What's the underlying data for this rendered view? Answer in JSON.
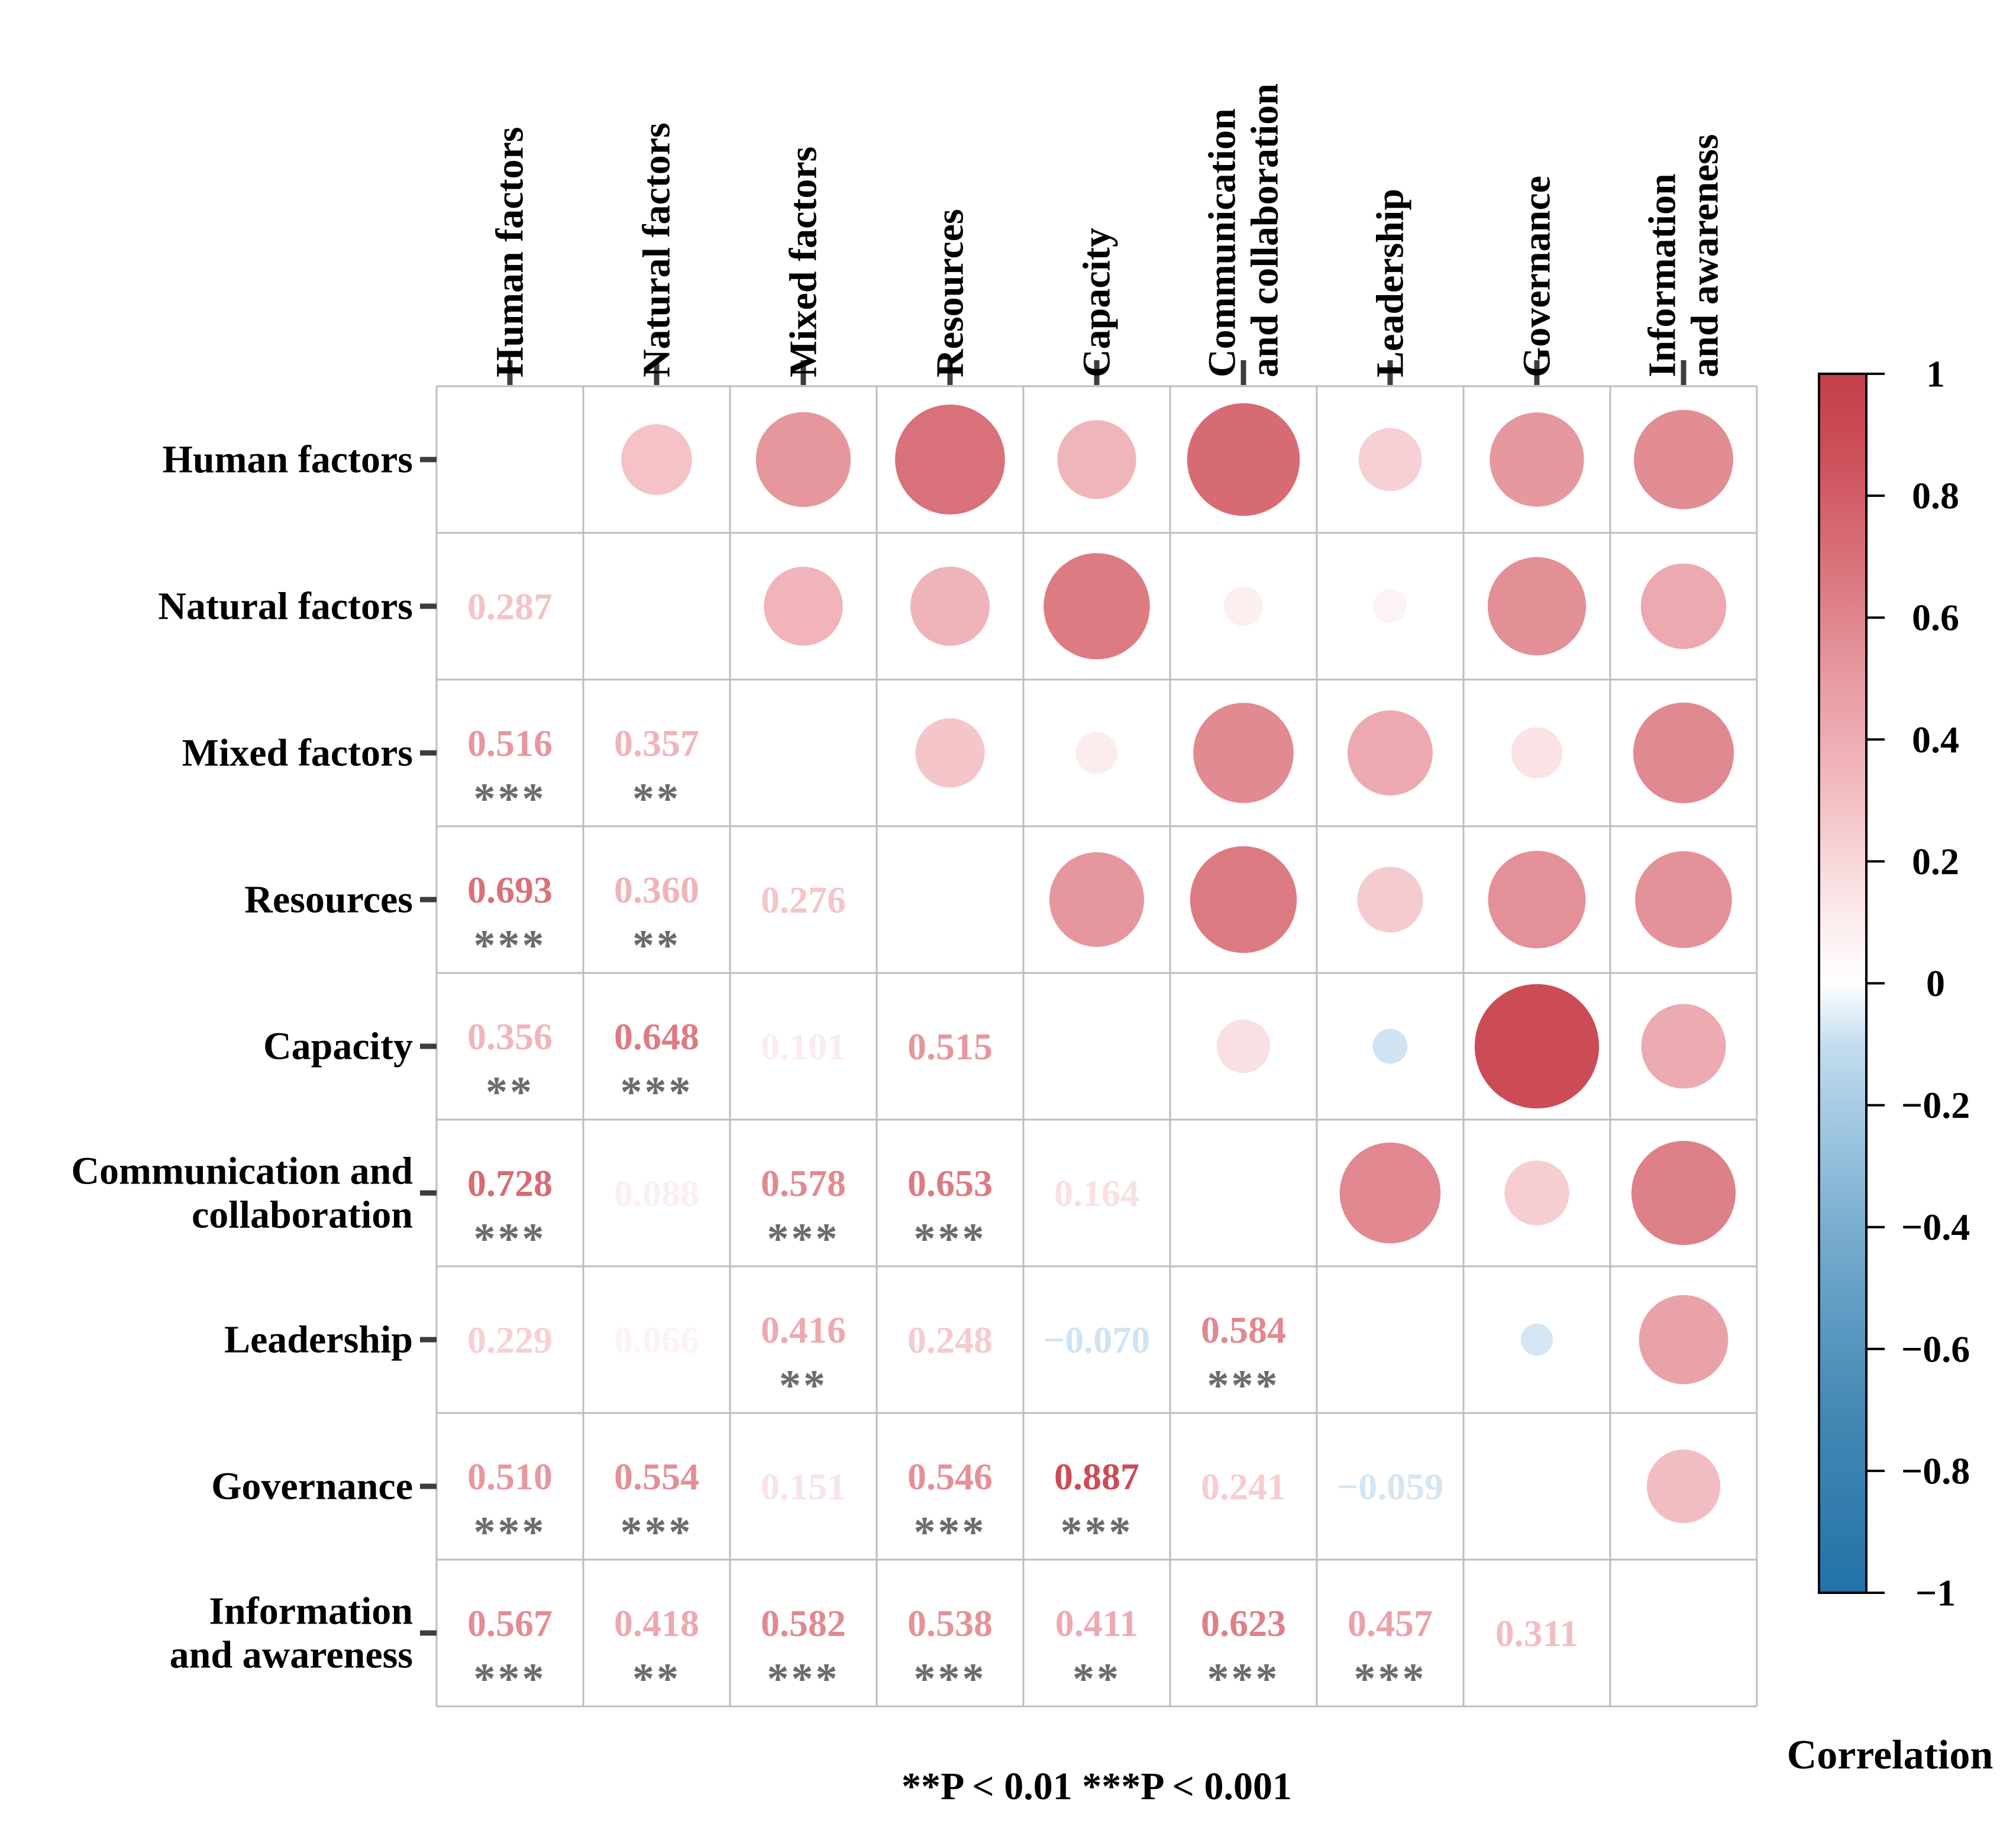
{
  "chart_data": {
    "type": "heatmap",
    "subtype": "correlation-matrix",
    "title": "",
    "upper_triangle": "circles sized and colored by correlation",
    "lower_triangle": "correlation values with significance stars",
    "variables": [
      {
        "name": "Human factors",
        "col_lines": [
          "Human factors"
        ],
        "row_lines": [
          "Human factors"
        ]
      },
      {
        "name": "Natural factors",
        "col_lines": [
          "Natural factors"
        ],
        "row_lines": [
          "Natural factors"
        ]
      },
      {
        "name": "Mixed factors",
        "col_lines": [
          "Mixed factors"
        ],
        "row_lines": [
          "Mixed factors"
        ]
      },
      {
        "name": "Resources",
        "col_lines": [
          "Resources"
        ],
        "row_lines": [
          "Resources"
        ]
      },
      {
        "name": "Capacity",
        "col_lines": [
          "Capacity"
        ],
        "row_lines": [
          "Capacity"
        ]
      },
      {
        "name": "Communication and collaboration",
        "col_lines": [
          "Communication",
          "and collaboration"
        ],
        "row_lines": [
          "Communication and",
          "collaboration"
        ]
      },
      {
        "name": "Leadership",
        "col_lines": [
          "Leadership"
        ],
        "row_lines": [
          "Leadership"
        ]
      },
      {
        "name": "Governance",
        "col_lines": [
          "Governance"
        ],
        "row_lines": [
          "Governance"
        ]
      },
      {
        "name": "Information and awareness",
        "col_lines": [
          "Information",
          "and awareness"
        ],
        "row_lines": [
          "Information",
          "and awareness"
        ]
      }
    ],
    "correlations": [
      {
        "row": 1,
        "col": 0,
        "r": 0.287,
        "label": "0.287",
        "stars": ""
      },
      {
        "row": 2,
        "col": 0,
        "r": 0.516,
        "label": "0.516",
        "stars": "***"
      },
      {
        "row": 2,
        "col": 1,
        "r": 0.357,
        "label": "0.357",
        "stars": "**"
      },
      {
        "row": 3,
        "col": 0,
        "r": 0.693,
        "label": "0.693",
        "stars": "***"
      },
      {
        "row": 3,
        "col": 1,
        "r": 0.36,
        "label": "0.360",
        "stars": "**"
      },
      {
        "row": 3,
        "col": 2,
        "r": 0.276,
        "label": "0.276",
        "stars": ""
      },
      {
        "row": 4,
        "col": 0,
        "r": 0.356,
        "label": "0.356",
        "stars": "**"
      },
      {
        "row": 4,
        "col": 1,
        "r": 0.648,
        "label": "0.648",
        "stars": "***"
      },
      {
        "row": 4,
        "col": 2,
        "r": 0.101,
        "label": "0.101",
        "stars": ""
      },
      {
        "row": 4,
        "col": 3,
        "r": 0.515,
        "label": "0.515",
        "stars": ""
      },
      {
        "row": 5,
        "col": 0,
        "r": 0.728,
        "label": "0.728",
        "stars": "***"
      },
      {
        "row": 5,
        "col": 1,
        "r": 0.088,
        "label": "0.088",
        "stars": ""
      },
      {
        "row": 5,
        "col": 2,
        "r": 0.578,
        "label": "0.578",
        "stars": "***"
      },
      {
        "row": 5,
        "col": 3,
        "r": 0.653,
        "label": "0.653",
        "stars": "***"
      },
      {
        "row": 5,
        "col": 4,
        "r": 0.164,
        "label": "0.164",
        "stars": ""
      },
      {
        "row": 6,
        "col": 0,
        "r": 0.229,
        "label": "0.229",
        "stars": ""
      },
      {
        "row": 6,
        "col": 1,
        "r": 0.066,
        "label": "0.066",
        "stars": ""
      },
      {
        "row": 6,
        "col": 2,
        "r": 0.416,
        "label": "0.416",
        "stars": "**"
      },
      {
        "row": 6,
        "col": 3,
        "r": 0.248,
        "label": "0.248",
        "stars": ""
      },
      {
        "row": 6,
        "col": 4,
        "r": -0.07,
        "label": "−0.070",
        "stars": ""
      },
      {
        "row": 6,
        "col": 5,
        "r": 0.584,
        "label": "0.584",
        "stars": "***"
      },
      {
        "row": 7,
        "col": 0,
        "r": 0.51,
        "label": "0.510",
        "stars": "***"
      },
      {
        "row": 7,
        "col": 1,
        "r": 0.554,
        "label": "0.554",
        "stars": "***"
      },
      {
        "row": 7,
        "col": 2,
        "r": 0.151,
        "label": "0.151",
        "stars": ""
      },
      {
        "row": 7,
        "col": 3,
        "r": 0.546,
        "label": "0.546",
        "stars": "***"
      },
      {
        "row": 7,
        "col": 4,
        "r": 0.887,
        "label": "0.887",
        "stars": "***"
      },
      {
        "row": 7,
        "col": 5,
        "r": 0.241,
        "label": "0.241",
        "stars": ""
      },
      {
        "row": 7,
        "col": 6,
        "r": -0.059,
        "label": "−0.059",
        "stars": ""
      },
      {
        "row": 8,
        "col": 0,
        "r": 0.567,
        "label": "0.567",
        "stars": "***"
      },
      {
        "row": 8,
        "col": 1,
        "r": 0.418,
        "label": "0.418",
        "stars": "**"
      },
      {
        "row": 8,
        "col": 2,
        "r": 0.582,
        "label": "0.582",
        "stars": "***"
      },
      {
        "row": 8,
        "col": 3,
        "r": 0.538,
        "label": "0.538",
        "stars": "***"
      },
      {
        "row": 8,
        "col": 4,
        "r": 0.411,
        "label": "0.411",
        "stars": "**"
      },
      {
        "row": 8,
        "col": 5,
        "r": 0.623,
        "label": "0.623",
        "stars": "***"
      },
      {
        "row": 8,
        "col": 6,
        "r": 0.457,
        "label": "0.457",
        "stars": "***"
      },
      {
        "row": 8,
        "col": 7,
        "r": 0.311,
        "label": "0.311",
        "stars": ""
      }
    ],
    "footnote": "**P < 0.01   ***P < 0.001",
    "legend": {
      "title": "Correlation",
      "min": -1,
      "max": 1,
      "ticks": [
        "1",
        "0.8",
        "0.6",
        "0.4",
        "0.2",
        "0",
        "−0.2",
        "−0.4",
        "−0.6",
        "−0.8",
        "−1"
      ],
      "position": "right"
    },
    "colors": {
      "positive_end": "#C43F4A",
      "negative_end": "#2272A8",
      "zero": "#FFFFFF",
      "stars": "#6B6B6B",
      "grid": "#BDBDBD",
      "axis_tick": "#3D3D3D"
    },
    "layout": {
      "grid_on": true,
      "n": 9
    }
  }
}
